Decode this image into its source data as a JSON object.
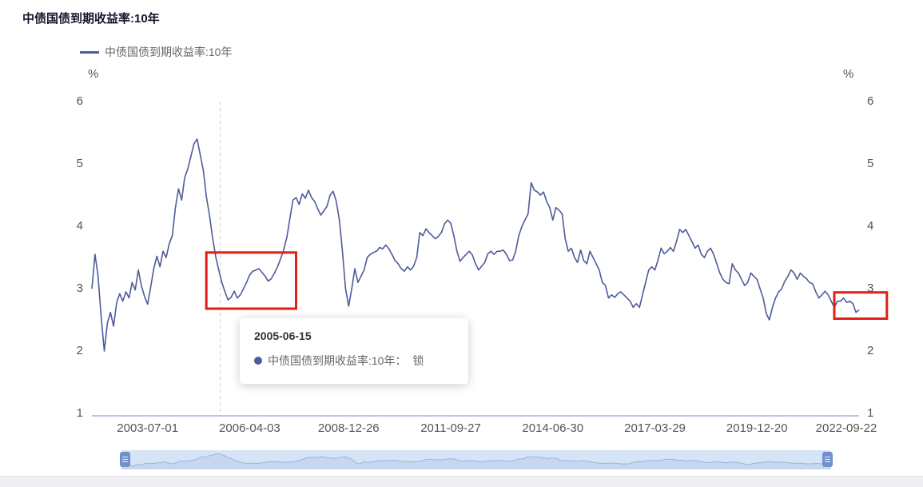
{
  "page": {
    "title": "中债国债到期收益率:10年"
  },
  "legend": {
    "label": "中债国债到期收益率:10年"
  },
  "tooltip": {
    "date": "2005-06-15",
    "series_label": "中债国债到期收益率:10年：",
    "value": "锁"
  },
  "colors": {
    "line": "#4e5b9c",
    "annotation": "#e02016",
    "axis_line": "#7d8bbf",
    "axis_text": "#555555",
    "dashed": "#cccccc",
    "datazoom_bg": "#d5e4f6",
    "datazoom_line": "#9fb3d8",
    "datazoom_fill": "#b9cce9",
    "datazoom_handle": "#7290cb"
  },
  "chart_data": {
    "type": "line",
    "title": "中债国债到期收益率:10年",
    "unit_left": "%",
    "unit_right": "%",
    "ylim": [
      1,
      6
    ],
    "y_ticks": [
      1,
      2,
      3,
      4,
      5,
      6
    ],
    "x_start": "2002-01",
    "x_interval": "monthly",
    "x_ticks": [
      {
        "index": 18,
        "label": "2003-07-01"
      },
      {
        "index": 51,
        "label": "2006-04-03"
      },
      {
        "index": 83,
        "label": "2008-12-26"
      },
      {
        "index": 116,
        "label": "2011-09-27"
      },
      {
        "index": 149,
        "label": "2014-06-30"
      },
      {
        "index": 182,
        "label": "2017-03-29"
      },
      {
        "index": 215,
        "label": "2019-12-20"
      },
      {
        "index": 248,
        "label": "2022-09-22"
      }
    ],
    "series": [
      {
        "name": "中债国债到期收益率:10年",
        "values": [
          3.0,
          3.55,
          3.2,
          2.55,
          2.0,
          2.45,
          2.62,
          2.4,
          2.78,
          2.92,
          2.8,
          2.95,
          2.85,
          3.1,
          2.98,
          3.3,
          3.05,
          2.88,
          2.75,
          3.02,
          3.32,
          3.52,
          3.35,
          3.6,
          3.5,
          3.72,
          3.85,
          4.3,
          4.6,
          4.42,
          4.78,
          4.92,
          5.12,
          5.32,
          5.4,
          5.15,
          4.9,
          4.48,
          4.18,
          3.82,
          3.52,
          3.3,
          3.1,
          2.95,
          2.82,
          2.86,
          2.96,
          2.85,
          2.9,
          3.0,
          3.1,
          3.22,
          3.28,
          3.3,
          3.32,
          3.26,
          3.2,
          3.12,
          3.16,
          3.25,
          3.35,
          3.48,
          3.62,
          3.82,
          4.12,
          4.42,
          4.46,
          4.35,
          4.52,
          4.45,
          4.58,
          4.46,
          4.4,
          4.28,
          4.18,
          4.25,
          4.32,
          4.5,
          4.56,
          4.4,
          4.1,
          3.6,
          3.0,
          2.72,
          3.0,
          3.32,
          3.1,
          3.2,
          3.3,
          3.5,
          3.55,
          3.58,
          3.6,
          3.66,
          3.64,
          3.7,
          3.64,
          3.55,
          3.45,
          3.4,
          3.32,
          3.28,
          3.35,
          3.3,
          3.36,
          3.5,
          3.9,
          3.85,
          3.96,
          3.9,
          3.85,
          3.8,
          3.84,
          3.9,
          4.04,
          4.1,
          4.05,
          3.85,
          3.6,
          3.44,
          3.5,
          3.55,
          3.6,
          3.54,
          3.4,
          3.3,
          3.36,
          3.42,
          3.56,
          3.6,
          3.55,
          3.6,
          3.6,
          3.62,
          3.55,
          3.45,
          3.46,
          3.6,
          3.85,
          4.0,
          4.1,
          4.2,
          4.7,
          4.58,
          4.55,
          4.5,
          4.55,
          4.4,
          4.3,
          4.1,
          4.3,
          4.26,
          4.2,
          3.8,
          3.6,
          3.65,
          3.5,
          3.42,
          3.62,
          3.45,
          3.4,
          3.6,
          3.5,
          3.4,
          3.3,
          3.1,
          3.05,
          2.85,
          2.9,
          2.86,
          2.92,
          2.95,
          2.9,
          2.85,
          2.8,
          2.7,
          2.76,
          2.7,
          2.9,
          3.1,
          3.3,
          3.35,
          3.3,
          3.46,
          3.65,
          3.56,
          3.6,
          3.66,
          3.6,
          3.76,
          3.95,
          3.9,
          3.95,
          3.85,
          3.75,
          3.65,
          3.7,
          3.55,
          3.5,
          3.6,
          3.65,
          3.55,
          3.4,
          3.25,
          3.15,
          3.1,
          3.08,
          3.4,
          3.3,
          3.25,
          3.15,
          3.05,
          3.1,
          3.25,
          3.2,
          3.15,
          3.0,
          2.85,
          2.6,
          2.5,
          2.7,
          2.85,
          2.95,
          3.0,
          3.12,
          3.2,
          3.3,
          3.25,
          3.15,
          3.25,
          3.2,
          3.16,
          3.1,
          3.08,
          2.95,
          2.85,
          2.9,
          2.96,
          2.9,
          2.8,
          2.7,
          2.8,
          2.8,
          2.85,
          2.78,
          2.8,
          2.76,
          2.62,
          2.66
        ]
      }
    ],
    "annotations": {
      "dashed_line_index": 41.5,
      "dashed_line_date": "2005-06-15",
      "boxes": [
        {
          "x1_index": 37,
          "x2_index": 66,
          "y_top": 3.58,
          "y_bottom": 2.68
        },
        {
          "x1_index": 240,
          "x2_index": 257,
          "y_top": 2.94,
          "y_bottom": 2.52
        }
      ]
    }
  }
}
